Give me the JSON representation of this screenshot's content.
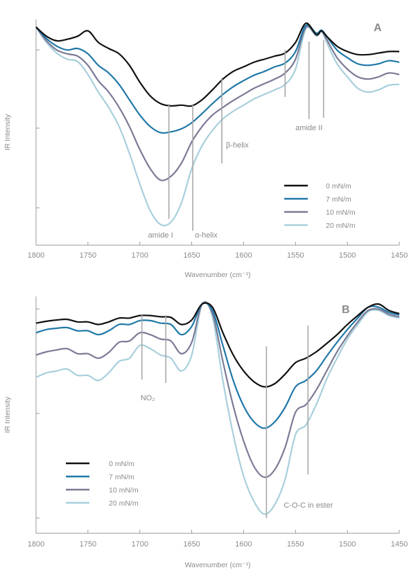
{
  "chart_data": [
    {
      "type": "line",
      "panel": "A",
      "xlabel": "Wavenumber (cm⁻¹)",
      "ylabel": "IR Intensity",
      "xlim": [
        1800,
        1450
      ],
      "x_ticks": [
        1800,
        1750,
        1700,
        1650,
        1600,
        1550,
        1500,
        1450
      ],
      "colors": [
        "#111111",
        "#1f78a8",
        "#7a7a96",
        "#a8cfdc"
      ],
      "legend_position": "lower-right",
      "series": [
        {
          "name": "0 mN/m",
          "x": [
            1800,
            1790,
            1780,
            1770,
            1760,
            1750,
            1740,
            1730,
            1720,
            1710,
            1700,
            1690,
            1680,
            1670,
            1660,
            1650,
            1640,
            1630,
            1620,
            1610,
            1600,
            1590,
            1580,
            1570,
            1560,
            1550,
            1540,
            1530,
            1525,
            1520,
            1510,
            1500,
            1490,
            1480,
            1470,
            1460,
            1450
          ],
          "y": [
            0,
            -0.12,
            -0.18,
            -0.16,
            -0.12,
            -0.05,
            -0.2,
            -0.28,
            -0.35,
            -0.5,
            -0.72,
            -0.9,
            -1.0,
            -1.03,
            -1.02,
            -1.03,
            -0.95,
            -0.82,
            -0.68,
            -0.58,
            -0.52,
            -0.46,
            -0.42,
            -0.38,
            -0.34,
            -0.2,
            0.05,
            -0.1,
            -0.05,
            -0.12,
            -0.25,
            -0.32,
            -0.36,
            -0.36,
            -0.34,
            -0.32,
            -0.32
          ]
        },
        {
          "name": "7 mN/m",
          "x": [
            1800,
            1790,
            1780,
            1770,
            1760,
            1750,
            1740,
            1730,
            1720,
            1710,
            1700,
            1690,
            1680,
            1670,
            1660,
            1650,
            1640,
            1630,
            1620,
            1610,
            1600,
            1590,
            1580,
            1570,
            1560,
            1550,
            1540,
            1530,
            1525,
            1520,
            1510,
            1500,
            1490,
            1480,
            1470,
            1460,
            1450
          ],
          "y": [
            0,
            -0.15,
            -0.25,
            -0.3,
            -0.28,
            -0.35,
            -0.5,
            -0.6,
            -0.75,
            -0.95,
            -1.15,
            -1.3,
            -1.38,
            -1.37,
            -1.33,
            -1.25,
            -1.13,
            -1.0,
            -0.88,
            -0.78,
            -0.7,
            -0.63,
            -0.58,
            -0.52,
            -0.47,
            -0.32,
            0.02,
            -0.08,
            -0.04,
            -0.12,
            -0.3,
            -0.4,
            -0.48,
            -0.5,
            -0.48,
            -0.44,
            -0.46
          ]
        },
        {
          "name": "10 mN/m",
          "x": [
            1800,
            1790,
            1780,
            1770,
            1760,
            1750,
            1740,
            1730,
            1720,
            1710,
            1700,
            1690,
            1680,
            1670,
            1660,
            1650,
            1640,
            1630,
            1620,
            1610,
            1600,
            1590,
            1580,
            1570,
            1560,
            1550,
            1540,
            1530,
            1525,
            1520,
            1510,
            1500,
            1490,
            1480,
            1470,
            1460,
            1450
          ],
          "y": [
            0,
            -0.18,
            -0.3,
            -0.35,
            -0.38,
            -0.5,
            -0.7,
            -0.85,
            -1.05,
            -1.3,
            -1.6,
            -1.85,
            -2.0,
            -1.95,
            -1.78,
            -1.5,
            -1.3,
            -1.15,
            -1.05,
            -0.96,
            -0.88,
            -0.8,
            -0.74,
            -0.68,
            -0.6,
            -0.42,
            0.0,
            -0.1,
            -0.05,
            -0.16,
            -0.4,
            -0.55,
            -0.65,
            -0.68,
            -0.65,
            -0.6,
            -0.62
          ]
        },
        {
          "name": "20 mN/m",
          "x": [
            1800,
            1790,
            1780,
            1770,
            1760,
            1750,
            1740,
            1730,
            1720,
            1710,
            1700,
            1690,
            1680,
            1670,
            1660,
            1650,
            1640,
            1630,
            1620,
            1610,
            1600,
            1590,
            1580,
            1570,
            1560,
            1550,
            1540,
            1530,
            1525,
            1520,
            1510,
            1500,
            1490,
            1480,
            1470,
            1460,
            1450
          ],
          "y": [
            0,
            -0.2,
            -0.34,
            -0.42,
            -0.45,
            -0.62,
            -0.85,
            -1.05,
            -1.3,
            -1.65,
            -2.05,
            -2.4,
            -2.58,
            -2.55,
            -2.3,
            -1.85,
            -1.55,
            -1.35,
            -1.2,
            -1.1,
            -1.02,
            -0.94,
            -0.88,
            -0.82,
            -0.75,
            -0.55,
            -0.02,
            -0.12,
            -0.06,
            -0.2,
            -0.48,
            -0.65,
            -0.8,
            -0.85,
            -0.82,
            -0.76,
            -0.75
          ]
        }
      ],
      "annotations": [
        {
          "text": "amide I",
          "x": 1672
        },
        {
          "text": "α-helix",
          "x": 1649
        },
        {
          "text": "β-helix",
          "x": 1621
        },
        {
          "text": "amide II",
          "x": 1537
        },
        {
          "text": "",
          "x": 1560
        },
        {
          "text": "",
          "x": 1523
        }
      ]
    },
    {
      "type": "line",
      "panel": "B",
      "xlabel": "Wavenumber (cm⁻¹)",
      "ylabel": "IR Intensity",
      "xlim": [
        1800,
        1450
      ],
      "x_ticks": [
        1800,
        1750,
        1700,
        1650,
        1600,
        1550,
        1500,
        1450
      ],
      "colors": [
        "#111111",
        "#1f78a8",
        "#7a7a96",
        "#a8cfdc"
      ],
      "legend_position": "lower-left",
      "series": [
        {
          "name": "0 mN/m",
          "x": [
            1800,
            1790,
            1780,
            1770,
            1760,
            1750,
            1740,
            1730,
            1720,
            1710,
            1700,
            1690,
            1680,
            1670,
            1660,
            1650,
            1640,
            1630,
            1620,
            1610,
            1600,
            1590,
            1580,
            1570,
            1560,
            1550,
            1540,
            1530,
            1520,
            1510,
            1500,
            1490,
            1480,
            1470,
            1460,
            1450
          ],
          "y": [
            -0.3,
            -0.27,
            -0.25,
            -0.24,
            -0.28,
            -0.28,
            -0.32,
            -0.28,
            -0.22,
            -0.22,
            -0.18,
            -0.18,
            -0.2,
            -0.21,
            -0.32,
            -0.25,
            0.0,
            -0.05,
            -0.45,
            -0.8,
            -1.05,
            -1.22,
            -1.3,
            -1.25,
            -1.1,
            -0.92,
            -0.85,
            -0.75,
            -0.62,
            -0.48,
            -0.32,
            -0.18,
            -0.05,
            0.0,
            -0.1,
            -0.15
          ]
        },
        {
          "name": "7 mN/m",
          "x": [
            1800,
            1790,
            1780,
            1770,
            1760,
            1750,
            1740,
            1730,
            1720,
            1710,
            1700,
            1690,
            1680,
            1670,
            1660,
            1650,
            1640,
            1630,
            1620,
            1610,
            1600,
            1590,
            1580,
            1570,
            1560,
            1550,
            1540,
            1530,
            1520,
            1510,
            1500,
            1490,
            1480,
            1470,
            1460,
            1450
          ],
          "y": [
            -0.45,
            -0.4,
            -0.38,
            -0.37,
            -0.42,
            -0.42,
            -0.48,
            -0.42,
            -0.32,
            -0.32,
            -0.26,
            -0.26,
            -0.3,
            -0.32,
            -0.48,
            -0.35,
            0.0,
            -0.1,
            -0.65,
            -1.2,
            -1.6,
            -1.85,
            -1.95,
            -1.85,
            -1.62,
            -1.3,
            -1.2,
            -1.05,
            -0.82,
            -0.6,
            -0.4,
            -0.22,
            -0.05,
            -0.05,
            -0.13,
            -0.17
          ]
        },
        {
          "name": "10 mN/m",
          "x": [
            1800,
            1790,
            1780,
            1770,
            1760,
            1750,
            1740,
            1730,
            1720,
            1710,
            1700,
            1690,
            1680,
            1670,
            1660,
            1650,
            1640,
            1630,
            1620,
            1610,
            1600,
            1590,
            1580,
            1570,
            1560,
            1550,
            1540,
            1530,
            1520,
            1510,
            1500,
            1490,
            1480,
            1470,
            1460,
            1450
          ],
          "y": [
            -0.8,
            -0.75,
            -0.72,
            -0.7,
            -0.78,
            -0.78,
            -0.85,
            -0.76,
            -0.6,
            -0.58,
            -0.45,
            -0.48,
            -0.55,
            -0.58,
            -0.78,
            -0.6,
            0.0,
            -0.15,
            -0.9,
            -1.6,
            -2.15,
            -2.55,
            -2.72,
            -2.6,
            -2.25,
            -1.7,
            -1.58,
            -1.35,
            -1.05,
            -0.75,
            -0.5,
            -0.28,
            -0.1,
            -0.08,
            -0.16,
            -0.2
          ]
        },
        {
          "name": "20 mN/m",
          "x": [
            1800,
            1790,
            1780,
            1770,
            1760,
            1750,
            1740,
            1730,
            1720,
            1710,
            1700,
            1690,
            1680,
            1670,
            1660,
            1650,
            1640,
            1630,
            1620,
            1610,
            1600,
            1590,
            1580,
            1570,
            1560,
            1550,
            1540,
            1530,
            1520,
            1510,
            1500,
            1490,
            1480,
            1470,
            1460,
            1450
          ],
          "y": [
            -1.15,
            -1.08,
            -1.05,
            -1.02,
            -1.12,
            -1.12,
            -1.2,
            -1.08,
            -0.9,
            -0.85,
            -0.65,
            -0.7,
            -0.8,
            -0.85,
            -1.05,
            -0.8,
            0.0,
            -0.2,
            -1.2,
            -2.05,
            -2.7,
            -3.1,
            -3.3,
            -3.15,
            -2.75,
            -2.05,
            -1.9,
            -1.58,
            -1.18,
            -0.85,
            -0.55,
            -0.32,
            -0.12,
            -0.1,
            -0.18,
            -0.22
          ]
        }
      ],
      "annotations": [
        {
          "text": "NO₂",
          "x": 1698
        },
        {
          "text": "",
          "x": 1675
        },
        {
          "text": "C-O-C in ester",
          "x": 1578
        },
        {
          "text": "",
          "x": 1538
        }
      ]
    }
  ]
}
